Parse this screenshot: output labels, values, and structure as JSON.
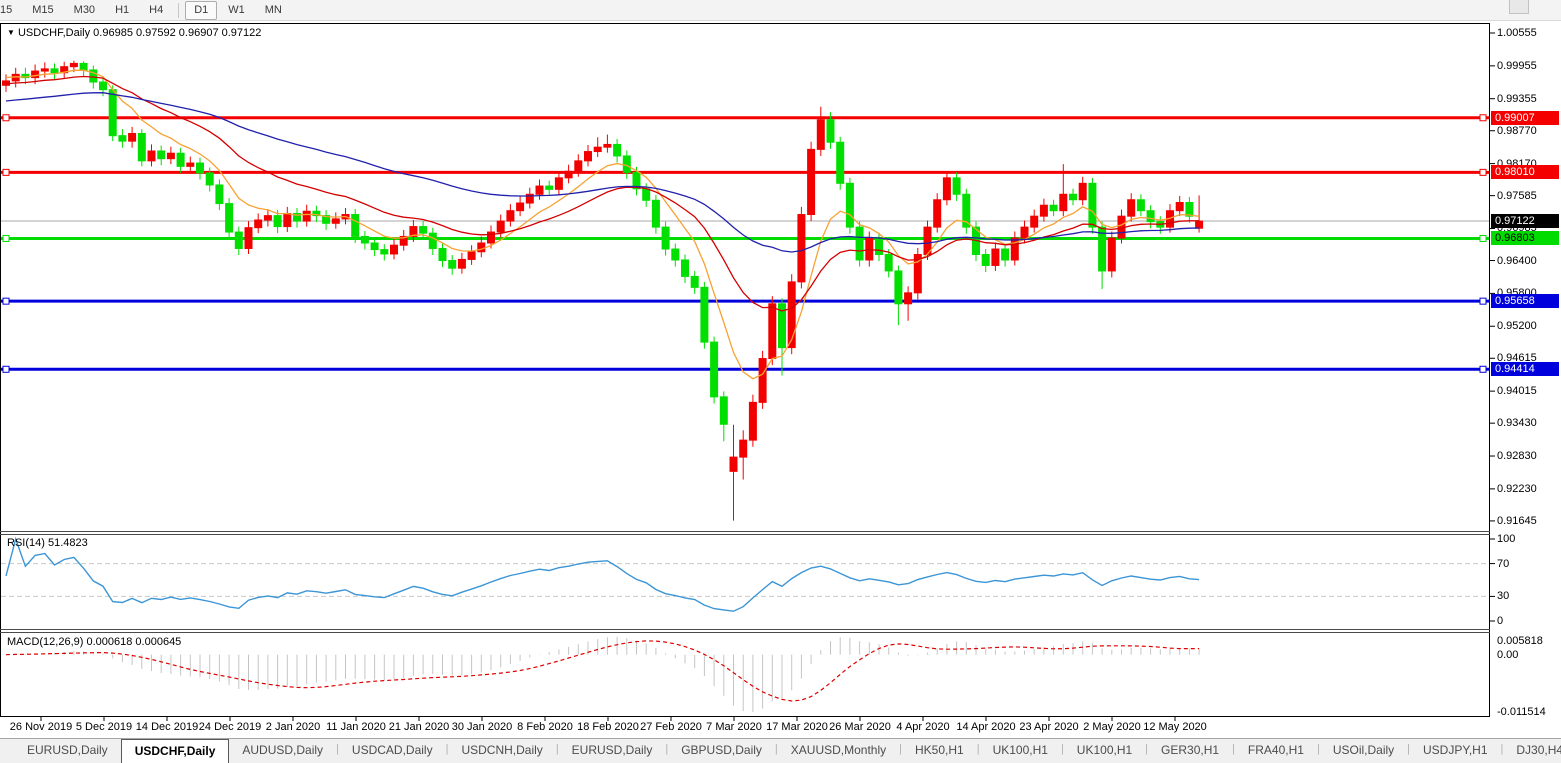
{
  "toolbar": {
    "timeframes": [
      {
        "label": "15",
        "active": false
      },
      {
        "label": "M15",
        "active": false
      },
      {
        "label": "M30",
        "active": false
      },
      {
        "label": "H1",
        "active": false
      },
      {
        "label": "H4",
        "active": false
      },
      {
        "label": "D1",
        "active": true
      },
      {
        "label": "W1",
        "active": false
      },
      {
        "label": "MN",
        "active": false
      }
    ]
  },
  "chart_header": {
    "dropdown_icon": "▼",
    "symbol": "USDCHF,Daily",
    "ohlc": "0.96985 0.97592 0.96907 0.97122"
  },
  "indicators": {
    "rsi": {
      "name": "RSI(14)",
      "value": "51.4823",
      "levels": [
        "100",
        "70",
        "30",
        "0"
      ],
      "level_values": [
        100,
        70,
        30,
        0
      ]
    },
    "macd": {
      "name": "MACD(12,26,9)",
      "values": "0.000618 0.000645",
      "scale_top": "0.005818",
      "scale_zero": "0.00",
      "scale_bottom": "-0.011514"
    }
  },
  "chart_data": {
    "type": "candlestick",
    "symbol": "USDCHF",
    "period": "Daily",
    "title": "USDCHF,Daily",
    "y_axis_ticks": [
      "1.00555",
      "0.99955",
      "0.99355",
      "0.98770",
      "0.98170",
      "0.97585",
      "0.96985",
      "0.96400",
      "0.95800",
      "0.95200",
      "0.94615",
      "0.94015",
      "0.93430",
      "0.92830",
      "0.92230",
      "0.91645"
    ],
    "x_axis_labels": [
      "26 Nov 2019",
      "5 Dec 2019",
      "14 Dec 2019",
      "24 Dec 2019",
      "2 Jan 2020",
      "11 Jan 2020",
      "21 Jan 2020",
      "30 Jan 2020",
      "8 Feb 2020",
      "18 Feb 2020",
      "27 Feb 2020",
      "7 Mar 2020",
      "17 Mar 2020",
      "26 Mar 2020",
      "4 Apr 2020",
      "14 Apr 2020",
      "23 Apr 2020",
      "2 May 2020",
      "12 May 2020"
    ],
    "price_range": {
      "top": 1.00555,
      "bottom": 0.91645
    },
    "horizontal_lines": [
      {
        "label": "0.99007",
        "value": 0.99007,
        "color": "#f50000",
        "text_color": "#ffffff"
      },
      {
        "label": "0.98010",
        "value": 0.9801,
        "color": "#f50000",
        "text_color": "#ffffff"
      },
      {
        "label": "0.96803",
        "value": 0.96803,
        "color": "#00dc00",
        "text_color": "#000000"
      },
      {
        "label": "0.95658",
        "value": 0.95658,
        "color": "#0000dc",
        "text_color": "#ffffff"
      },
      {
        "label": "0.94414",
        "value": 0.94414,
        "color": "#0000dc",
        "text_color": "#ffffff"
      }
    ],
    "current_price": {
      "label": "0.97122",
      "value": 0.97122
    },
    "colors": {
      "up_candle": "#f20000",
      "down_candle": "#00df00",
      "ma_fast": "#f7a233",
      "ma_mid": "#d40000",
      "ma_slow": "#2121ac",
      "rsi_line": "#3b95d6",
      "rsi_levels": "#c9c9c9",
      "macd_hist": "#c4c4c4",
      "macd_signal": "#e00000",
      "current_price_line": "#a8a8a8"
    },
    "moving_averages": [
      {
        "name": "fast",
        "period": 8,
        "seed": 0.9976,
        "color": "#f7a233"
      },
      {
        "name": "mid",
        "period": 21,
        "seed": 0.9962,
        "color": "#d40000"
      },
      {
        "name": "slow",
        "period": 55,
        "seed": 0.993,
        "color": "#2121ac"
      }
    ],
    "candles": [
      [
        0.996,
        0.998,
        0.9948,
        0.9968
      ],
      [
        0.9968,
        0.9992,
        0.9956,
        0.998
      ],
      [
        0.998,
        0.9992,
        0.9962,
        0.9974
      ],
      [
        0.9974,
        0.9998,
        0.9962,
        0.9986
      ],
      [
        0.9986,
        1.0002,
        0.9974,
        0.999
      ],
      [
        0.999,
        1.0,
        0.9971,
        0.9983
      ],
      [
        0.9983,
        1.0003,
        0.9973,
        0.9994
      ],
      [
        0.9994,
        1.0005,
        0.9984,
        1.0
      ],
      [
        1.0,
        1.0004,
        0.9976,
        0.9988
      ],
      [
        0.9988,
        0.9996,
        0.9954,
        0.9966
      ],
      [
        0.9966,
        0.9976,
        0.994,
        0.9952
      ],
      [
        0.9952,
        0.996,
        0.9858,
        0.9868
      ],
      [
        0.9868,
        0.988,
        0.9846,
        0.9858
      ],
      [
        0.9858,
        0.9884,
        0.9846,
        0.9872
      ],
      [
        0.9872,
        0.988,
        0.9812,
        0.9822
      ],
      [
        0.9822,
        0.9852,
        0.9812,
        0.984
      ],
      [
        0.984,
        0.985,
        0.9814,
        0.9826
      ],
      [
        0.9826,
        0.9848,
        0.9816,
        0.9836
      ],
      [
        0.9836,
        0.9846,
        0.98,
        0.9812
      ],
      [
        0.9812,
        0.983,
        0.9802,
        0.9818
      ],
      [
        0.9818,
        0.9828,
        0.9788,
        0.98
      ],
      [
        0.98,
        0.981,
        0.9766,
        0.9778
      ],
      [
        0.9778,
        0.9788,
        0.9732,
        0.9744
      ],
      [
        0.9744,
        0.9754,
        0.968,
        0.9692
      ],
      [
        0.9692,
        0.9702,
        0.965,
        0.9662
      ],
      [
        0.9662,
        0.9712,
        0.9652,
        0.97
      ],
      [
        0.97,
        0.9726,
        0.969,
        0.9714
      ],
      [
        0.9714,
        0.9734,
        0.9702,
        0.9722
      ],
      [
        0.9722,
        0.9732,
        0.969,
        0.9702
      ],
      [
        0.9702,
        0.9738,
        0.9692,
        0.9726
      ],
      [
        0.9726,
        0.9736,
        0.97,
        0.9712
      ],
      [
        0.9712,
        0.9742,
        0.9702,
        0.973
      ],
      [
        0.973,
        0.974,
        0.971,
        0.9722
      ],
      [
        0.9722,
        0.9732,
        0.9696,
        0.9708
      ],
      [
        0.9708,
        0.9728,
        0.9698,
        0.9716
      ],
      [
        0.9716,
        0.9736,
        0.9706,
        0.9724
      ],
      [
        0.9724,
        0.9734,
        0.9672,
        0.9684
      ],
      [
        0.9684,
        0.9694,
        0.966,
        0.9672
      ],
      [
        0.9672,
        0.9682,
        0.9648,
        0.966
      ],
      [
        0.966,
        0.967,
        0.964,
        0.9652
      ],
      [
        0.9652,
        0.968,
        0.9642,
        0.9668
      ],
      [
        0.9668,
        0.9696,
        0.9658,
        0.9684
      ],
      [
        0.9684,
        0.9714,
        0.9674,
        0.9702
      ],
      [
        0.9702,
        0.9712,
        0.9678,
        0.969
      ],
      [
        0.969,
        0.97,
        0.965,
        0.9662
      ],
      [
        0.9662,
        0.9672,
        0.9628,
        0.964
      ],
      [
        0.964,
        0.965,
        0.9614,
        0.9626
      ],
      [
        0.9626,
        0.9654,
        0.9616,
        0.9642
      ],
      [
        0.9642,
        0.9668,
        0.9632,
        0.9656
      ],
      [
        0.9656,
        0.9684,
        0.9646,
        0.9672
      ],
      [
        0.9672,
        0.9704,
        0.9662,
        0.9692
      ],
      [
        0.9692,
        0.9724,
        0.9682,
        0.9712
      ],
      [
        0.9712,
        0.9743,
        0.9702,
        0.9731
      ],
      [
        0.9731,
        0.9757,
        0.9721,
        0.9745
      ],
      [
        0.9745,
        0.9773,
        0.9735,
        0.9761
      ],
      [
        0.9761,
        0.9788,
        0.9751,
        0.9776
      ],
      [
        0.9776,
        0.9786,
        0.976,
        0.977
      ],
      [
        0.977,
        0.9803,
        0.976,
        0.9791
      ],
      [
        0.9791,
        0.9815,
        0.9781,
        0.9803
      ],
      [
        0.9803,
        0.9834,
        0.9793,
        0.9822
      ],
      [
        0.9822,
        0.9851,
        0.9812,
        0.9839
      ],
      [
        0.9839,
        0.9865,
        0.9829,
        0.9847
      ],
      [
        0.9847,
        0.987,
        0.9837,
        0.9852
      ],
      [
        0.9852,
        0.9862,
        0.9819,
        0.9831
      ],
      [
        0.9831,
        0.9841,
        0.9789,
        0.9801
      ],
      [
        0.9801,
        0.9811,
        0.9759,
        0.9771
      ],
      [
        0.9771,
        0.9781,
        0.9738,
        0.975
      ],
      [
        0.975,
        0.976,
        0.9689,
        0.9701
      ],
      [
        0.9701,
        0.9711,
        0.9649,
        0.9661
      ],
      [
        0.9661,
        0.9671,
        0.9629,
        0.9641
      ],
      [
        0.9641,
        0.9651,
        0.9599,
        0.9611
      ],
      [
        0.9611,
        0.9621,
        0.9579,
        0.9591
      ],
      [
        0.9591,
        0.9601,
        0.9479,
        0.9491
      ],
      [
        0.9491,
        0.9501,
        0.9379,
        0.9391
      ],
      [
        0.9391,
        0.9401,
        0.931,
        0.9341
      ],
      [
        0.9255,
        0.934,
        0.9165,
        0.9281
      ],
      [
        0.9281,
        0.933,
        0.924,
        0.9312
      ],
      [
        0.9312,
        0.9395,
        0.93,
        0.9381
      ],
      [
        0.9381,
        0.9475,
        0.9369,
        0.9461
      ],
      [
        0.9461,
        0.9575,
        0.9449,
        0.9561
      ],
      [
        0.9561,
        0.9571,
        0.943,
        0.9481
      ],
      [
        0.9481,
        0.9615,
        0.9469,
        0.9601
      ],
      [
        0.9601,
        0.9738,
        0.9589,
        0.9724
      ],
      [
        0.9724,
        0.9857,
        0.9712,
        0.9843
      ],
      [
        0.9843,
        0.9921,
        0.9831,
        0.9897
      ],
      [
        0.9897,
        0.9911,
        0.9844,
        0.9856
      ],
      [
        0.9856,
        0.9866,
        0.9769,
        0.9781
      ],
      [
        0.9781,
        0.9791,
        0.9689,
        0.9701
      ],
      [
        0.9701,
        0.9711,
        0.9629,
        0.9641
      ],
      [
        0.9641,
        0.9693,
        0.9629,
        0.9681
      ],
      [
        0.9681,
        0.9691,
        0.9639,
        0.9651
      ],
      [
        0.9651,
        0.9661,
        0.9609,
        0.9621
      ],
      [
        0.9621,
        0.9631,
        0.9522,
        0.9561
      ],
      [
        0.9561,
        0.9593,
        0.953,
        0.9581
      ],
      [
        0.9581,
        0.9663,
        0.9569,
        0.9651
      ],
      [
        0.9651,
        0.9713,
        0.9641,
        0.9701
      ],
      [
        0.9701,
        0.9763,
        0.9691,
        0.9751
      ],
      [
        0.9751,
        0.9803,
        0.9741,
        0.9791
      ],
      [
        0.9791,
        0.9801,
        0.9749,
        0.9761
      ],
      [
        0.9761,
        0.9771,
        0.9689,
        0.9701
      ],
      [
        0.9701,
        0.9711,
        0.9639,
        0.9651
      ],
      [
        0.9651,
        0.9661,
        0.9619,
        0.9631
      ],
      [
        0.9631,
        0.9673,
        0.9621,
        0.9661
      ],
      [
        0.9661,
        0.9671,
        0.9629,
        0.9641
      ],
      [
        0.9641,
        0.9693,
        0.9631,
        0.9681
      ],
      [
        0.9681,
        0.9713,
        0.9671,
        0.9701
      ],
      [
        0.9701,
        0.9733,
        0.9691,
        0.9721
      ],
      [
        0.9721,
        0.9753,
        0.9711,
        0.9741
      ],
      [
        0.9741,
        0.9751,
        0.9721,
        0.9731
      ],
      [
        0.9731,
        0.9816,
        0.9721,
        0.9761
      ],
      [
        0.9761,
        0.9771,
        0.9741,
        0.9751
      ],
      [
        0.9751,
        0.9793,
        0.9741,
        0.9781
      ],
      [
        0.9781,
        0.9791,
        0.9689,
        0.9701
      ],
      [
        0.9701,
        0.9711,
        0.9588,
        0.9621
      ],
      [
        0.9621,
        0.9693,
        0.9609,
        0.9681
      ],
      [
        0.9681,
        0.9733,
        0.9671,
        0.9721
      ],
      [
        0.9721,
        0.9763,
        0.9711,
        0.9751
      ],
      [
        0.9751,
        0.9761,
        0.9721,
        0.9731
      ],
      [
        0.9731,
        0.9741,
        0.9699,
        0.9711
      ],
      [
        0.9711,
        0.9721,
        0.9689,
        0.9701
      ],
      [
        0.9701,
        0.9743,
        0.9691,
        0.9731
      ],
      [
        0.9731,
        0.9758,
        0.9721,
        0.9746
      ],
      [
        0.9746,
        0.9756,
        0.9709,
        0.9721
      ],
      [
        0.9699,
        0.9759,
        0.9691,
        0.9712
      ]
    ]
  },
  "tabs": {
    "items": [
      {
        "label": "EURUSD,Daily",
        "active": false
      },
      {
        "label": "USDCHF,Daily",
        "active": true
      },
      {
        "label": "AUDUSD,Daily",
        "active": false
      },
      {
        "label": "USDCAD,Daily",
        "active": false
      },
      {
        "label": "USDCNH,Daily",
        "active": false
      },
      {
        "label": "EURUSD,Daily",
        "active": false
      },
      {
        "label": "GBPUSD,Daily",
        "active": false
      },
      {
        "label": "XAUUSD,Monthly",
        "active": false
      },
      {
        "label": "HK50,H1",
        "active": false
      },
      {
        "label": "UK100,H1",
        "active": false
      },
      {
        "label": "UK100,H1",
        "active": false
      },
      {
        "label": "GER30,H1",
        "active": false
      },
      {
        "label": "FRA40,H1",
        "active": false
      },
      {
        "label": "USOil,Daily",
        "active": false
      },
      {
        "label": "USDJPY,H1",
        "active": false
      },
      {
        "label": "DJ30,H4",
        "active": false
      }
    ],
    "scroll_left": "◄",
    "scroll_right": "►"
  }
}
